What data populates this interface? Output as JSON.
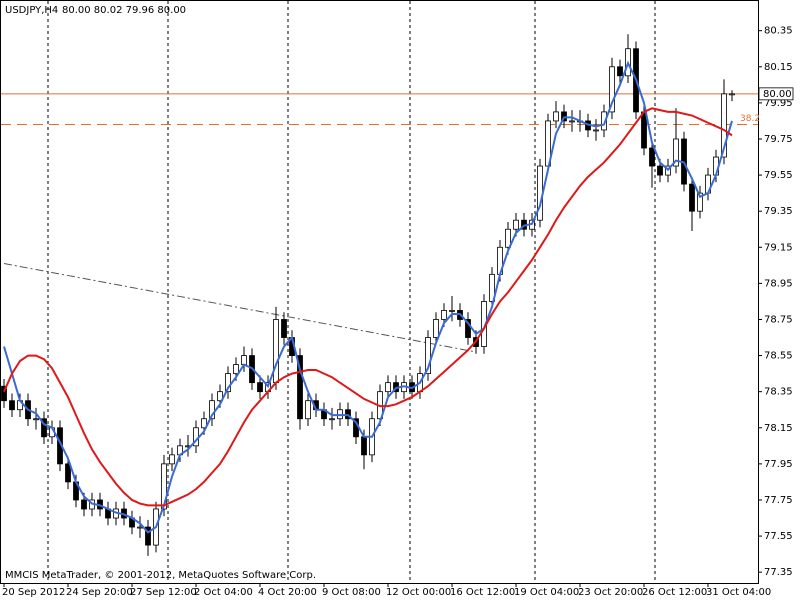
{
  "chart_data": {
    "type": "candlestick",
    "title": "USDJPY,H4",
    "header_values": "80.00 80.02 79.96 80.00",
    "footer": "MMCIS MetaTrader, © 2001-2012, MetaQuotes Software Corp.",
    "categories": [
      "20 Sep 2012",
      null,
      null,
      null,
      null,
      null,
      null,
      null,
      "24 Sep 20:00",
      null,
      null,
      null,
      null,
      null,
      null,
      null,
      "27 Sep 12:00",
      null,
      null,
      null,
      null,
      null,
      null,
      null,
      "2 Oct 04:00",
      null,
      null,
      null,
      null,
      null,
      null,
      null,
      "4 Oct 20:00",
      null,
      null,
      null,
      null,
      null,
      null,
      null,
      "9 Oct 08:00",
      null,
      null,
      null,
      null,
      null,
      null,
      null,
      "12 Oct 00:00",
      null,
      null,
      null,
      null,
      null,
      null,
      null,
      "16 Oct 12:00",
      null,
      null,
      null,
      null,
      null,
      null,
      null,
      "19 Oct 04:00",
      null,
      null,
      null,
      null,
      null,
      null,
      null,
      "23 Oct 20:00",
      null,
      null,
      null,
      null,
      null,
      null,
      null,
      "26 Oct 12:00",
      null,
      null,
      null,
      null,
      null,
      null,
      null,
      "31 Oct 04:00",
      null,
      null,
      null
    ],
    "ohlc": [
      [
        78.38,
        78.42,
        78.26,
        78.3
      ],
      [
        78.3,
        78.34,
        78.21,
        78.25
      ],
      [
        78.25,
        78.34,
        78.21,
        78.3
      ],
      [
        78.3,
        78.34,
        78.16,
        78.2
      ],
      [
        78.2,
        78.26,
        78.14,
        78.2
      ],
      [
        78.2,
        78.24,
        78.06,
        78.1
      ],
      [
        78.1,
        78.19,
        78.06,
        78.15
      ],
      [
        78.15,
        78.19,
        77.91,
        77.95
      ],
      [
        77.95,
        77.99,
        77.81,
        77.85
      ],
      [
        77.85,
        77.89,
        77.71,
        77.75
      ],
      [
        77.75,
        77.79,
        77.66,
        77.7
      ],
      [
        77.7,
        77.79,
        77.66,
        77.75
      ],
      [
        77.75,
        77.79,
        77.66,
        77.7
      ],
      [
        77.7,
        77.74,
        77.61,
        77.65
      ],
      [
        77.65,
        77.74,
        77.61,
        77.7
      ],
      [
        77.7,
        77.74,
        77.61,
        77.65
      ],
      [
        77.65,
        77.69,
        77.56,
        77.6
      ],
      [
        77.6,
        77.66,
        77.54,
        77.6
      ],
      [
        77.6,
        77.64,
        77.44,
        77.5
      ],
      [
        77.5,
        77.74,
        77.46,
        77.7
      ],
      [
        77.7,
        78.0,
        77.66,
        77.95
      ],
      [
        77.95,
        78.04,
        77.91,
        78.0
      ],
      [
        78.0,
        78.09,
        77.96,
        78.05
      ],
      [
        78.05,
        78.11,
        77.99,
        78.05
      ],
      [
        78.05,
        78.19,
        78.01,
        78.15
      ],
      [
        78.15,
        78.24,
        78.11,
        78.2
      ],
      [
        78.2,
        78.34,
        78.16,
        78.3
      ],
      [
        78.3,
        78.39,
        78.26,
        78.35
      ],
      [
        78.35,
        78.49,
        78.31,
        78.45
      ],
      [
        78.45,
        78.54,
        78.41,
        78.5
      ],
      [
        78.5,
        78.6,
        78.46,
        78.55
      ],
      [
        78.55,
        78.59,
        78.36,
        78.4
      ],
      [
        78.4,
        78.44,
        78.31,
        78.35
      ],
      [
        78.35,
        78.44,
        78.31,
        78.4
      ],
      [
        78.4,
        78.82,
        78.36,
        78.75
      ],
      [
        78.75,
        78.79,
        78.61,
        78.65
      ],
      [
        78.65,
        78.69,
        78.51,
        78.55
      ],
      [
        78.55,
        78.59,
        78.14,
        78.2
      ],
      [
        78.2,
        78.34,
        78.16,
        78.3
      ],
      [
        78.3,
        78.34,
        78.21,
        78.25
      ],
      [
        78.25,
        78.29,
        78.16,
        78.2
      ],
      [
        78.2,
        78.26,
        78.14,
        78.2
      ],
      [
        78.2,
        78.29,
        78.16,
        78.25
      ],
      [
        78.25,
        78.29,
        78.16,
        78.2
      ],
      [
        78.2,
        78.24,
        78.06,
        78.1
      ],
      [
        78.1,
        78.14,
        77.92,
        78.0
      ],
      [
        78.0,
        78.24,
        77.96,
        78.2
      ],
      [
        78.2,
        78.39,
        78.16,
        78.35
      ],
      [
        78.35,
        78.44,
        78.31,
        78.4
      ],
      [
        78.4,
        78.44,
        78.31,
        78.35
      ],
      [
        78.35,
        78.44,
        78.31,
        78.4
      ],
      [
        78.4,
        78.44,
        78.31,
        78.35
      ],
      [
        78.35,
        78.49,
        78.31,
        78.45
      ],
      [
        78.45,
        78.69,
        78.41,
        78.65
      ],
      [
        78.65,
        78.79,
        78.61,
        78.75
      ],
      [
        78.75,
        78.84,
        78.71,
        78.8
      ],
      [
        78.8,
        78.88,
        78.74,
        78.8
      ],
      [
        78.8,
        78.84,
        78.71,
        78.75
      ],
      [
        78.75,
        78.79,
        78.61,
        78.65
      ],
      [
        78.65,
        78.69,
        78.56,
        78.6
      ],
      [
        78.6,
        78.89,
        78.56,
        78.85
      ],
      [
        78.85,
        79.04,
        78.81,
        79.0
      ],
      [
        79.0,
        79.19,
        78.96,
        79.15
      ],
      [
        79.15,
        79.29,
        79.11,
        79.25
      ],
      [
        79.25,
        79.34,
        79.21,
        79.3
      ],
      [
        79.3,
        79.34,
        79.21,
        79.25
      ],
      [
        79.25,
        79.34,
        79.21,
        79.3
      ],
      [
        79.3,
        79.64,
        79.26,
        79.6
      ],
      [
        79.6,
        79.89,
        79.56,
        79.85
      ],
      [
        79.85,
        79.96,
        79.81,
        79.9
      ],
      [
        79.9,
        79.94,
        79.81,
        79.85
      ],
      [
        79.85,
        79.91,
        79.79,
        79.85
      ],
      [
        79.85,
        79.91,
        79.79,
        79.85
      ],
      [
        79.85,
        79.89,
        79.76,
        79.8
      ],
      [
        79.8,
        79.86,
        79.74,
        79.8
      ],
      [
        79.8,
        79.94,
        79.76,
        79.9
      ],
      [
        79.9,
        80.2,
        79.86,
        80.15
      ],
      [
        80.15,
        80.19,
        80.06,
        80.1
      ],
      [
        80.1,
        80.33,
        80.06,
        80.25
      ],
      [
        80.25,
        80.29,
        79.86,
        79.9
      ],
      [
        79.9,
        79.94,
        79.66,
        79.7
      ],
      [
        79.7,
        79.74,
        79.48,
        79.6
      ],
      [
        79.6,
        79.64,
        79.51,
        79.55
      ],
      [
        79.55,
        79.64,
        79.51,
        79.6
      ],
      [
        79.6,
        79.92,
        79.56,
        79.75
      ],
      [
        79.75,
        79.79,
        79.46,
        79.5
      ],
      [
        79.5,
        79.54,
        79.24,
        79.35
      ],
      [
        79.35,
        79.49,
        79.31,
        79.45
      ],
      [
        79.45,
        79.59,
        79.41,
        79.55
      ],
      [
        79.55,
        79.69,
        79.51,
        79.65
      ],
      [
        79.65,
        80.08,
        79.61,
        80.0
      ],
      [
        80.0,
        80.02,
        79.96,
        80.0
      ]
    ],
    "bull_color": "#ffffff",
    "bear_color": "#000000",
    "series": [
      {
        "color": "#3a6ad4",
        "values": [
          78.6,
          78.45,
          78.3,
          78.25,
          78.23,
          78.17,
          78.15,
          78.07,
          77.98,
          77.85,
          77.77,
          77.73,
          77.72,
          77.7,
          77.68,
          77.67,
          77.65,
          77.62,
          77.57,
          77.6,
          77.72,
          77.88,
          78.0,
          78.03,
          78.08,
          78.13,
          78.22,
          78.28,
          78.37,
          78.43,
          78.5,
          78.48,
          78.43,
          78.38,
          78.5,
          78.6,
          78.65,
          78.47,
          78.35,
          78.25,
          78.25,
          78.22,
          78.22,
          78.22,
          78.18,
          78.1,
          78.1,
          78.18,
          78.32,
          78.37,
          78.38,
          78.37,
          78.4,
          78.48,
          78.62,
          78.73,
          78.78,
          78.78,
          78.73,
          78.67,
          78.7,
          78.82,
          79.0,
          79.13,
          79.23,
          79.27,
          79.28,
          79.38,
          79.58,
          79.78,
          79.87,
          79.87,
          79.85,
          79.83,
          79.82,
          79.83,
          79.95,
          80.05,
          80.17,
          80.08,
          79.95,
          79.73,
          79.62,
          79.58,
          79.63,
          79.62,
          79.53,
          79.43,
          79.45,
          79.55,
          79.7,
          79.85
        ]
      },
      {
        "color": "#e01818",
        "values": [
          78.35,
          78.45,
          78.52,
          78.55,
          78.55,
          78.53,
          78.48,
          78.4,
          78.32,
          78.22,
          78.12,
          78.03,
          77.96,
          77.9,
          77.84,
          77.79,
          77.75,
          77.73,
          77.72,
          77.72,
          77.72,
          77.74,
          77.76,
          77.78,
          77.81,
          77.85,
          77.9,
          77.95,
          78.02,
          78.1,
          78.18,
          78.25,
          78.3,
          78.35,
          78.4,
          78.43,
          78.45,
          78.46,
          78.47,
          78.47,
          78.45,
          78.43,
          78.4,
          78.37,
          78.34,
          78.31,
          78.29,
          78.27,
          78.27,
          78.28,
          78.3,
          78.32,
          78.35,
          78.38,
          78.42,
          78.46,
          78.5,
          78.54,
          78.58,
          78.63,
          78.7,
          78.78,
          78.85,
          78.9,
          78.96,
          79.02,
          79.08,
          79.15,
          79.22,
          79.3,
          79.37,
          79.43,
          79.49,
          79.54,
          79.58,
          79.62,
          79.67,
          79.72,
          79.78,
          79.84,
          79.9,
          79.92,
          79.91,
          79.9,
          79.9,
          79.89,
          79.88,
          79.86,
          79.84,
          79.82,
          79.8,
          79.77
        ]
      }
    ],
    "price_line": {
      "value": 80.0,
      "label": "80.00",
      "color": "#e07030"
    },
    "fib_level": {
      "value": 79.83,
      "label": "38.2",
      "color": "#e07030"
    },
    "trendline": {
      "x": [
        0,
        59
      ],
      "y": [
        79.06,
        78.57
      ],
      "color": "#555555"
    },
    "ylim": [
      77.29,
      80.52
    ],
    "yticks": [
      80.35,
      80.15,
      79.95,
      79.75,
      79.55,
      79.35,
      79.15,
      78.95,
      78.75,
      78.55,
      78.35,
      78.15,
      77.95,
      77.75,
      77.55,
      77.35
    ]
  }
}
